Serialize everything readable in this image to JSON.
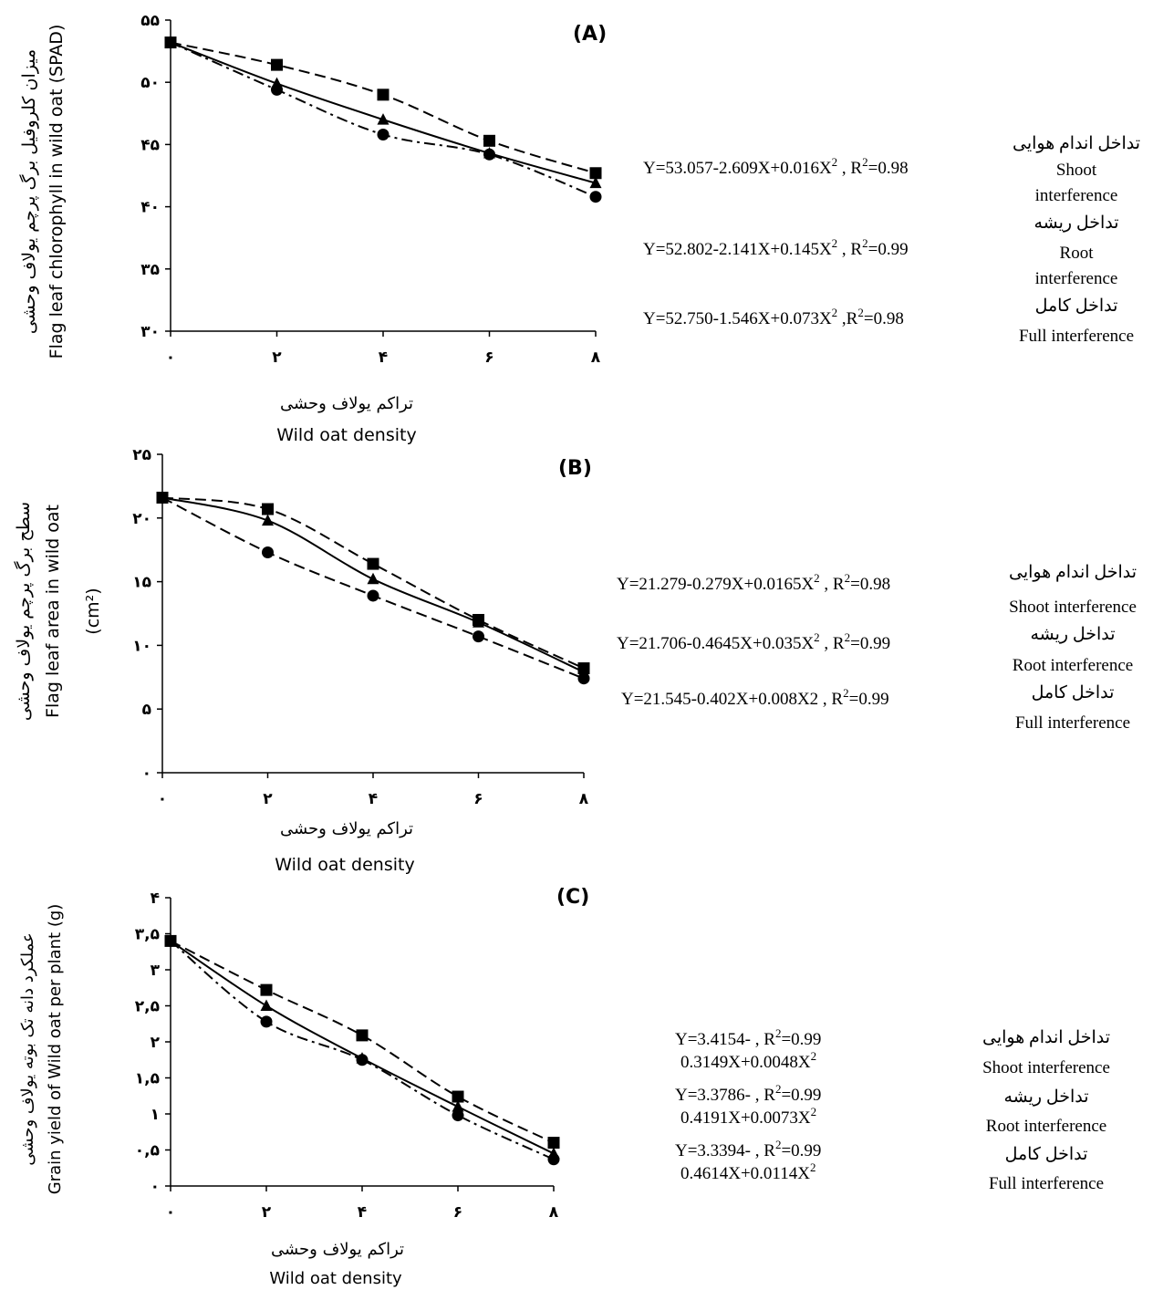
{
  "panels": [
    {
      "id": "A",
      "panel_label": "(A)",
      "ylabel_fa": "میزان کلروفیل برگ پرچم یولاف وحشی",
      "ylabel_en": "Flag leaf chlorophyll in wild oat (SPAD)",
      "xlabel_fa": "تراکم یولاف وحشی",
      "xlabel_en": "Wild oat density",
      "y_ticks": [
        "۳۰",
        "۳۵",
        "۴۰",
        "۴۵",
        "۵۰",
        "۵۵"
      ],
      "x_ticks": [
        "۰",
        "۲",
        "۴",
        "۶",
        "۸"
      ],
      "equations": [
        {
          "left": "Y=53.057-2.609X+0.016X",
          "sup1": "2",
          "mid": " , R",
          "sup2": "2",
          "right": "=0.98"
        },
        {
          "left": "Y=52.802-2.141X+0.145X",
          "sup1": "2",
          "mid": " , R",
          "sup2": "2",
          "right": "=0.99"
        },
        {
          "left": "Y=52.750-1.546X+0.073X",
          "sup1": "2",
          "mid": "  ,R",
          "sup2": "2",
          "right": "=0.98"
        }
      ],
      "legend": [
        {
          "fa": "تداخل اندام هوایی",
          "en": [
            "Shoot",
            "interference"
          ]
        },
        {
          "fa": "تداخل ریشه",
          "en": [
            "Root",
            "interference"
          ]
        },
        {
          "fa": "تداخل کامل",
          "en": [
            "Full interference"
          ]
        }
      ]
    },
    {
      "id": "B",
      "panel_label": "(B)",
      "ylabel_fa": "سطح برگ پرچم یولاف وحشی",
      "ylabel_en": "Flag leaf area in wild oat",
      "ylabel_unit": "(cm²)",
      "xlabel_fa": "تراکم یولاف وحشی",
      "xlabel_en": "Wild oat  density",
      "y_ticks": [
        "۰",
        "۵",
        "۱۰",
        "۱۵",
        "۲۰",
        "۲۵"
      ],
      "x_ticks": [
        "۰",
        "۲",
        "۴",
        "۶",
        "۸"
      ],
      "equations": [
        {
          "left": "Y=21.279-0.279X+0.0165X",
          "sup1": "2",
          "mid": " , R",
          "sup2": "2",
          "right": "=0.98"
        },
        {
          "left": "Y=21.706-0.4645X+0.035X",
          "sup1": "2",
          "mid": " , R",
          "sup2": "2",
          "right": "=0.99"
        },
        {
          "left": "Y=21.545-0.402X+0.008X2 , R",
          "sup1": "",
          "mid": "",
          "sup2": "2",
          "right": "=0.99"
        }
      ],
      "legend": [
        {
          "fa": "تداخل اندام هوایی",
          "en": [
            "Shoot interference"
          ]
        },
        {
          "fa": "تداخل ریشه",
          "en": [
            "Root interference"
          ]
        },
        {
          "fa": "تداخل کامل",
          "en": [
            "Full interference"
          ]
        }
      ]
    },
    {
      "id": "C",
      "panel_label": "(C)",
      "ylabel_fa": "عملکرد دانه تک بوته یولاف وحشی",
      "ylabel_en": "Grain yield of Wild oat per plant (g)",
      "xlabel_fa": "تراکم یولاف وحشی",
      "xlabel_en": "Wild oat density",
      "y_ticks": [
        "۰",
        "۰,۵",
        "۱",
        "۱,۵",
        "۲",
        "۲,۵",
        "۳",
        "۳,۵",
        "۴"
      ],
      "x_ticks": [
        "۰",
        "۲",
        "۴",
        "۶",
        "۸"
      ],
      "equations": [
        {
          "line1": "Y=3.4154- , R",
          "sup": "2",
          "line1b": "=0.99",
          "line2": "0.3149X+0.0048X",
          "sup2": "2"
        },
        {
          "line1": "Y=3.3786- , R",
          "sup": "2",
          "line1b": "=0.99",
          "line2": "0.4191X+0.0073X",
          "sup2": "2"
        },
        {
          "line1": "Y=3.3394- , R",
          "sup": "2",
          "line1b": "=0.99",
          "line2": "0.4614X+0.0114X",
          "sup2": "2"
        }
      ],
      "legend": [
        {
          "fa": "تداخل اندام هوایی",
          "en": [
            "Shoot interference"
          ]
        },
        {
          "fa": "تداخل ریشه",
          "en": [
            "Root interference"
          ]
        },
        {
          "fa": "تداخل کامل",
          "en": [
            "Full interference"
          ]
        }
      ]
    }
  ],
  "chart_data": [
    {
      "type": "scatter",
      "title": "(A)",
      "xlabel": "Wild oat density",
      "ylabel": "Flag leaf chlorophyll in wild oat (SPAD)",
      "xlim": [
        0,
        8
      ],
      "ylim": [
        30,
        55
      ],
      "x": [
        0,
        2,
        4,
        6,
        8
      ],
      "series": [
        {
          "marker": "square",
          "line": "dashed",
          "values": [
            53.2,
            51.4,
            49.0,
            45.3,
            42.7
          ],
          "fit": [
            53.057,
            -2.609,
            0.016
          ]
        },
        {
          "marker": "triangle",
          "line": "solid",
          "values": [
            53.2,
            49.9,
            47.0,
            44.3,
            41.9
          ],
          "fit": [
            52.802,
            -2.141,
            0.145
          ]
        },
        {
          "marker": "circle",
          "line": "dashdot",
          "values": [
            53.2,
            49.4,
            45.8,
            44.2,
            40.8
          ],
          "fit": [
            52.75,
            -1.546,
            0.073
          ]
        }
      ]
    },
    {
      "type": "scatter",
      "title": "(B)",
      "xlabel": "Wild oat density",
      "ylabel": "Flag leaf area in wild oat (cm2)",
      "xlim": [
        0,
        8
      ],
      "ylim": [
        0,
        25
      ],
      "x": [
        0,
        2,
        4,
        6,
        8
      ],
      "series": [
        {
          "marker": "square",
          "line": "dashed",
          "values": [
            21.6,
            20.7,
            16.4,
            12.0,
            8.2
          ],
          "fit": [
            21.279,
            -0.279,
            0.0165
          ]
        },
        {
          "marker": "triangle",
          "line": "solid",
          "values": [
            21.6,
            19.8,
            15.2,
            11.8,
            7.9
          ],
          "fit": [
            21.706,
            -0.4645,
            0.035
          ]
        },
        {
          "marker": "circle",
          "line": "dashed",
          "values": [
            21.6,
            17.3,
            13.9,
            10.7,
            7.4
          ],
          "fit": [
            21.545,
            -0.402,
            0.008
          ]
        }
      ]
    },
    {
      "type": "scatter",
      "title": "(C)",
      "xlabel": "Wild oat density",
      "ylabel": "Grain yield of Wild oat per plant (g)",
      "xlim": [
        0,
        8
      ],
      "ylim": [
        0,
        4
      ],
      "x": [
        0,
        2,
        4,
        6,
        8
      ],
      "series": [
        {
          "marker": "square",
          "line": "dashed",
          "values": [
            3.4,
            2.72,
            2.09,
            1.24,
            0.6
          ],
          "fit": [
            3.4154,
            -0.3149,
            0.0048
          ]
        },
        {
          "marker": "triangle",
          "line": "solid",
          "values": [
            3.4,
            2.5,
            1.77,
            1.1,
            0.45
          ],
          "fit": [
            3.3786,
            -0.4191,
            0.0073
          ]
        },
        {
          "marker": "circle",
          "line": "dashdot",
          "values": [
            3.4,
            2.28,
            1.75,
            0.98,
            0.37
          ],
          "fit": [
            3.3394,
            -0.4614,
            0.0114
          ]
        }
      ]
    }
  ]
}
